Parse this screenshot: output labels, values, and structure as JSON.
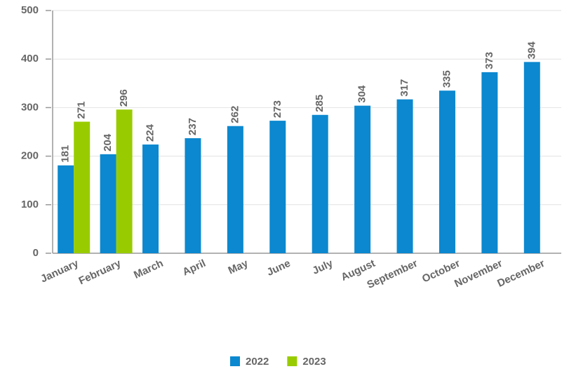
{
  "chart_data": {
    "type": "bar",
    "categories": [
      "January",
      "February",
      "March",
      "April",
      "May",
      "June",
      "July",
      "August",
      "September",
      "October",
      "November",
      "December"
    ],
    "series": [
      {
        "name": "2022",
        "color": "#0b88cf",
        "values": [
          181,
          204,
          224,
          237,
          262,
          273,
          285,
          304,
          317,
          335,
          373,
          394
        ]
      },
      {
        "name": "2023",
        "color": "#99cc00",
        "values": [
          271,
          296,
          null,
          null,
          null,
          null,
          null,
          null,
          null,
          null,
          null,
          null
        ]
      }
    ],
    "ylim": [
      0,
      500
    ],
    "yticks": [
      0,
      100,
      200,
      300,
      400,
      500
    ],
    "grid": true
  }
}
